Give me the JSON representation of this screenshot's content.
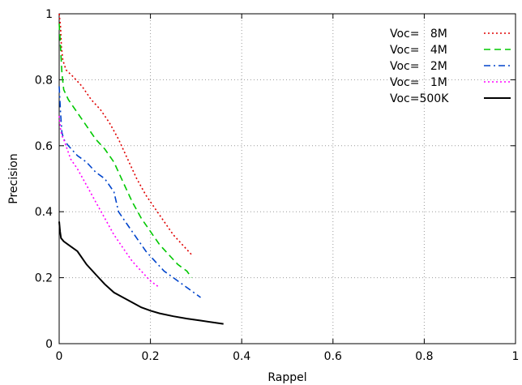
{
  "chart_data": {
    "type": "line",
    "title": "",
    "xlabel": "Rappel",
    "ylabel": "Precision",
    "xlim": [
      0,
      1
    ],
    "ylim": [
      0,
      1
    ],
    "xticks": [
      "0",
      "0.2",
      "0.4",
      "0.6",
      "0.8",
      "1"
    ],
    "yticks": [
      "0",
      "0.2",
      "0.4",
      "0.6",
      "0.8",
      "1"
    ],
    "grid": true,
    "grid_style": "dotted",
    "legend_position": "top-right",
    "series": [
      {
        "name": "Voc=   8M",
        "color": "#e00000",
        "dash": "dotted",
        "points": [
          [
            0.0,
            1.0
          ],
          [
            0.003,
            0.96
          ],
          [
            0.005,
            0.9
          ],
          [
            0.008,
            0.86
          ],
          [
            0.015,
            0.83
          ],
          [
            0.03,
            0.81
          ],
          [
            0.05,
            0.78
          ],
          [
            0.07,
            0.74
          ],
          [
            0.09,
            0.71
          ],
          [
            0.11,
            0.67
          ],
          [
            0.13,
            0.62
          ],
          [
            0.15,
            0.56
          ],
          [
            0.17,
            0.5
          ],
          [
            0.19,
            0.45
          ],
          [
            0.21,
            0.41
          ],
          [
            0.23,
            0.37
          ],
          [
            0.25,
            0.33
          ],
          [
            0.27,
            0.3
          ],
          [
            0.29,
            0.27
          ]
        ]
      },
      {
        "name": "Voc=   4M",
        "color": "#00c800",
        "dash": "dashed",
        "points": [
          [
            0.0,
            0.97
          ],
          [
            0.003,
            0.9
          ],
          [
            0.006,
            0.82
          ],
          [
            0.01,
            0.77
          ],
          [
            0.02,
            0.74
          ],
          [
            0.04,
            0.7
          ],
          [
            0.06,
            0.66
          ],
          [
            0.08,
            0.62
          ],
          [
            0.1,
            0.59
          ],
          [
            0.12,
            0.55
          ],
          [
            0.14,
            0.49
          ],
          [
            0.16,
            0.43
          ],
          [
            0.18,
            0.38
          ],
          [
            0.2,
            0.34
          ],
          [
            0.22,
            0.3
          ],
          [
            0.24,
            0.27
          ],
          [
            0.26,
            0.24
          ],
          [
            0.28,
            0.22
          ],
          [
            0.29,
            0.2
          ]
        ]
      },
      {
        "name": "Voc=   2M",
        "color": "#0044cc",
        "dash": "dashdot",
        "points": [
          [
            0.0,
            0.78
          ],
          [
            0.003,
            0.7
          ],
          [
            0.006,
            0.64
          ],
          [
            0.01,
            0.62
          ],
          [
            0.02,
            0.6
          ],
          [
            0.04,
            0.57
          ],
          [
            0.06,
            0.55
          ],
          [
            0.08,
            0.52
          ],
          [
            0.1,
            0.5
          ],
          [
            0.12,
            0.46
          ],
          [
            0.13,
            0.4
          ],
          [
            0.15,
            0.36
          ],
          [
            0.17,
            0.32
          ],
          [
            0.19,
            0.28
          ],
          [
            0.21,
            0.25
          ],
          [
            0.23,
            0.22
          ],
          [
            0.25,
            0.2
          ],
          [
            0.27,
            0.18
          ],
          [
            0.29,
            0.16
          ],
          [
            0.31,
            0.14
          ]
        ]
      },
      {
        "name": "Voc=   1M",
        "color": "#ff00ff",
        "dash": "dotted",
        "points": [
          [
            0.0,
            0.69
          ],
          [
            0.003,
            0.65
          ],
          [
            0.006,
            0.63
          ],
          [
            0.01,
            0.62
          ],
          [
            0.015,
            0.6
          ],
          [
            0.025,
            0.56
          ],
          [
            0.04,
            0.53
          ],
          [
            0.06,
            0.48
          ],
          [
            0.08,
            0.43
          ],
          [
            0.1,
            0.38
          ],
          [
            0.12,
            0.33
          ],
          [
            0.14,
            0.29
          ],
          [
            0.16,
            0.25
          ],
          [
            0.18,
            0.22
          ],
          [
            0.2,
            0.19
          ],
          [
            0.22,
            0.17
          ]
        ]
      },
      {
        "name": "Voc=500K",
        "color": "#000000",
        "dash": "solid",
        "points": [
          [
            0.0,
            0.37
          ],
          [
            0.002,
            0.34
          ],
          [
            0.004,
            0.32
          ],
          [
            0.01,
            0.31
          ],
          [
            0.02,
            0.3
          ],
          [
            0.04,
            0.28
          ],
          [
            0.06,
            0.24
          ],
          [
            0.08,
            0.21
          ],
          [
            0.1,
            0.18
          ],
          [
            0.12,
            0.155
          ],
          [
            0.14,
            0.14
          ],
          [
            0.16,
            0.125
          ],
          [
            0.18,
            0.11
          ],
          [
            0.2,
            0.1
          ],
          [
            0.22,
            0.092
          ],
          [
            0.25,
            0.083
          ],
          [
            0.28,
            0.076
          ],
          [
            0.31,
            0.07
          ],
          [
            0.34,
            0.064
          ],
          [
            0.36,
            0.06
          ]
        ]
      }
    ]
  }
}
